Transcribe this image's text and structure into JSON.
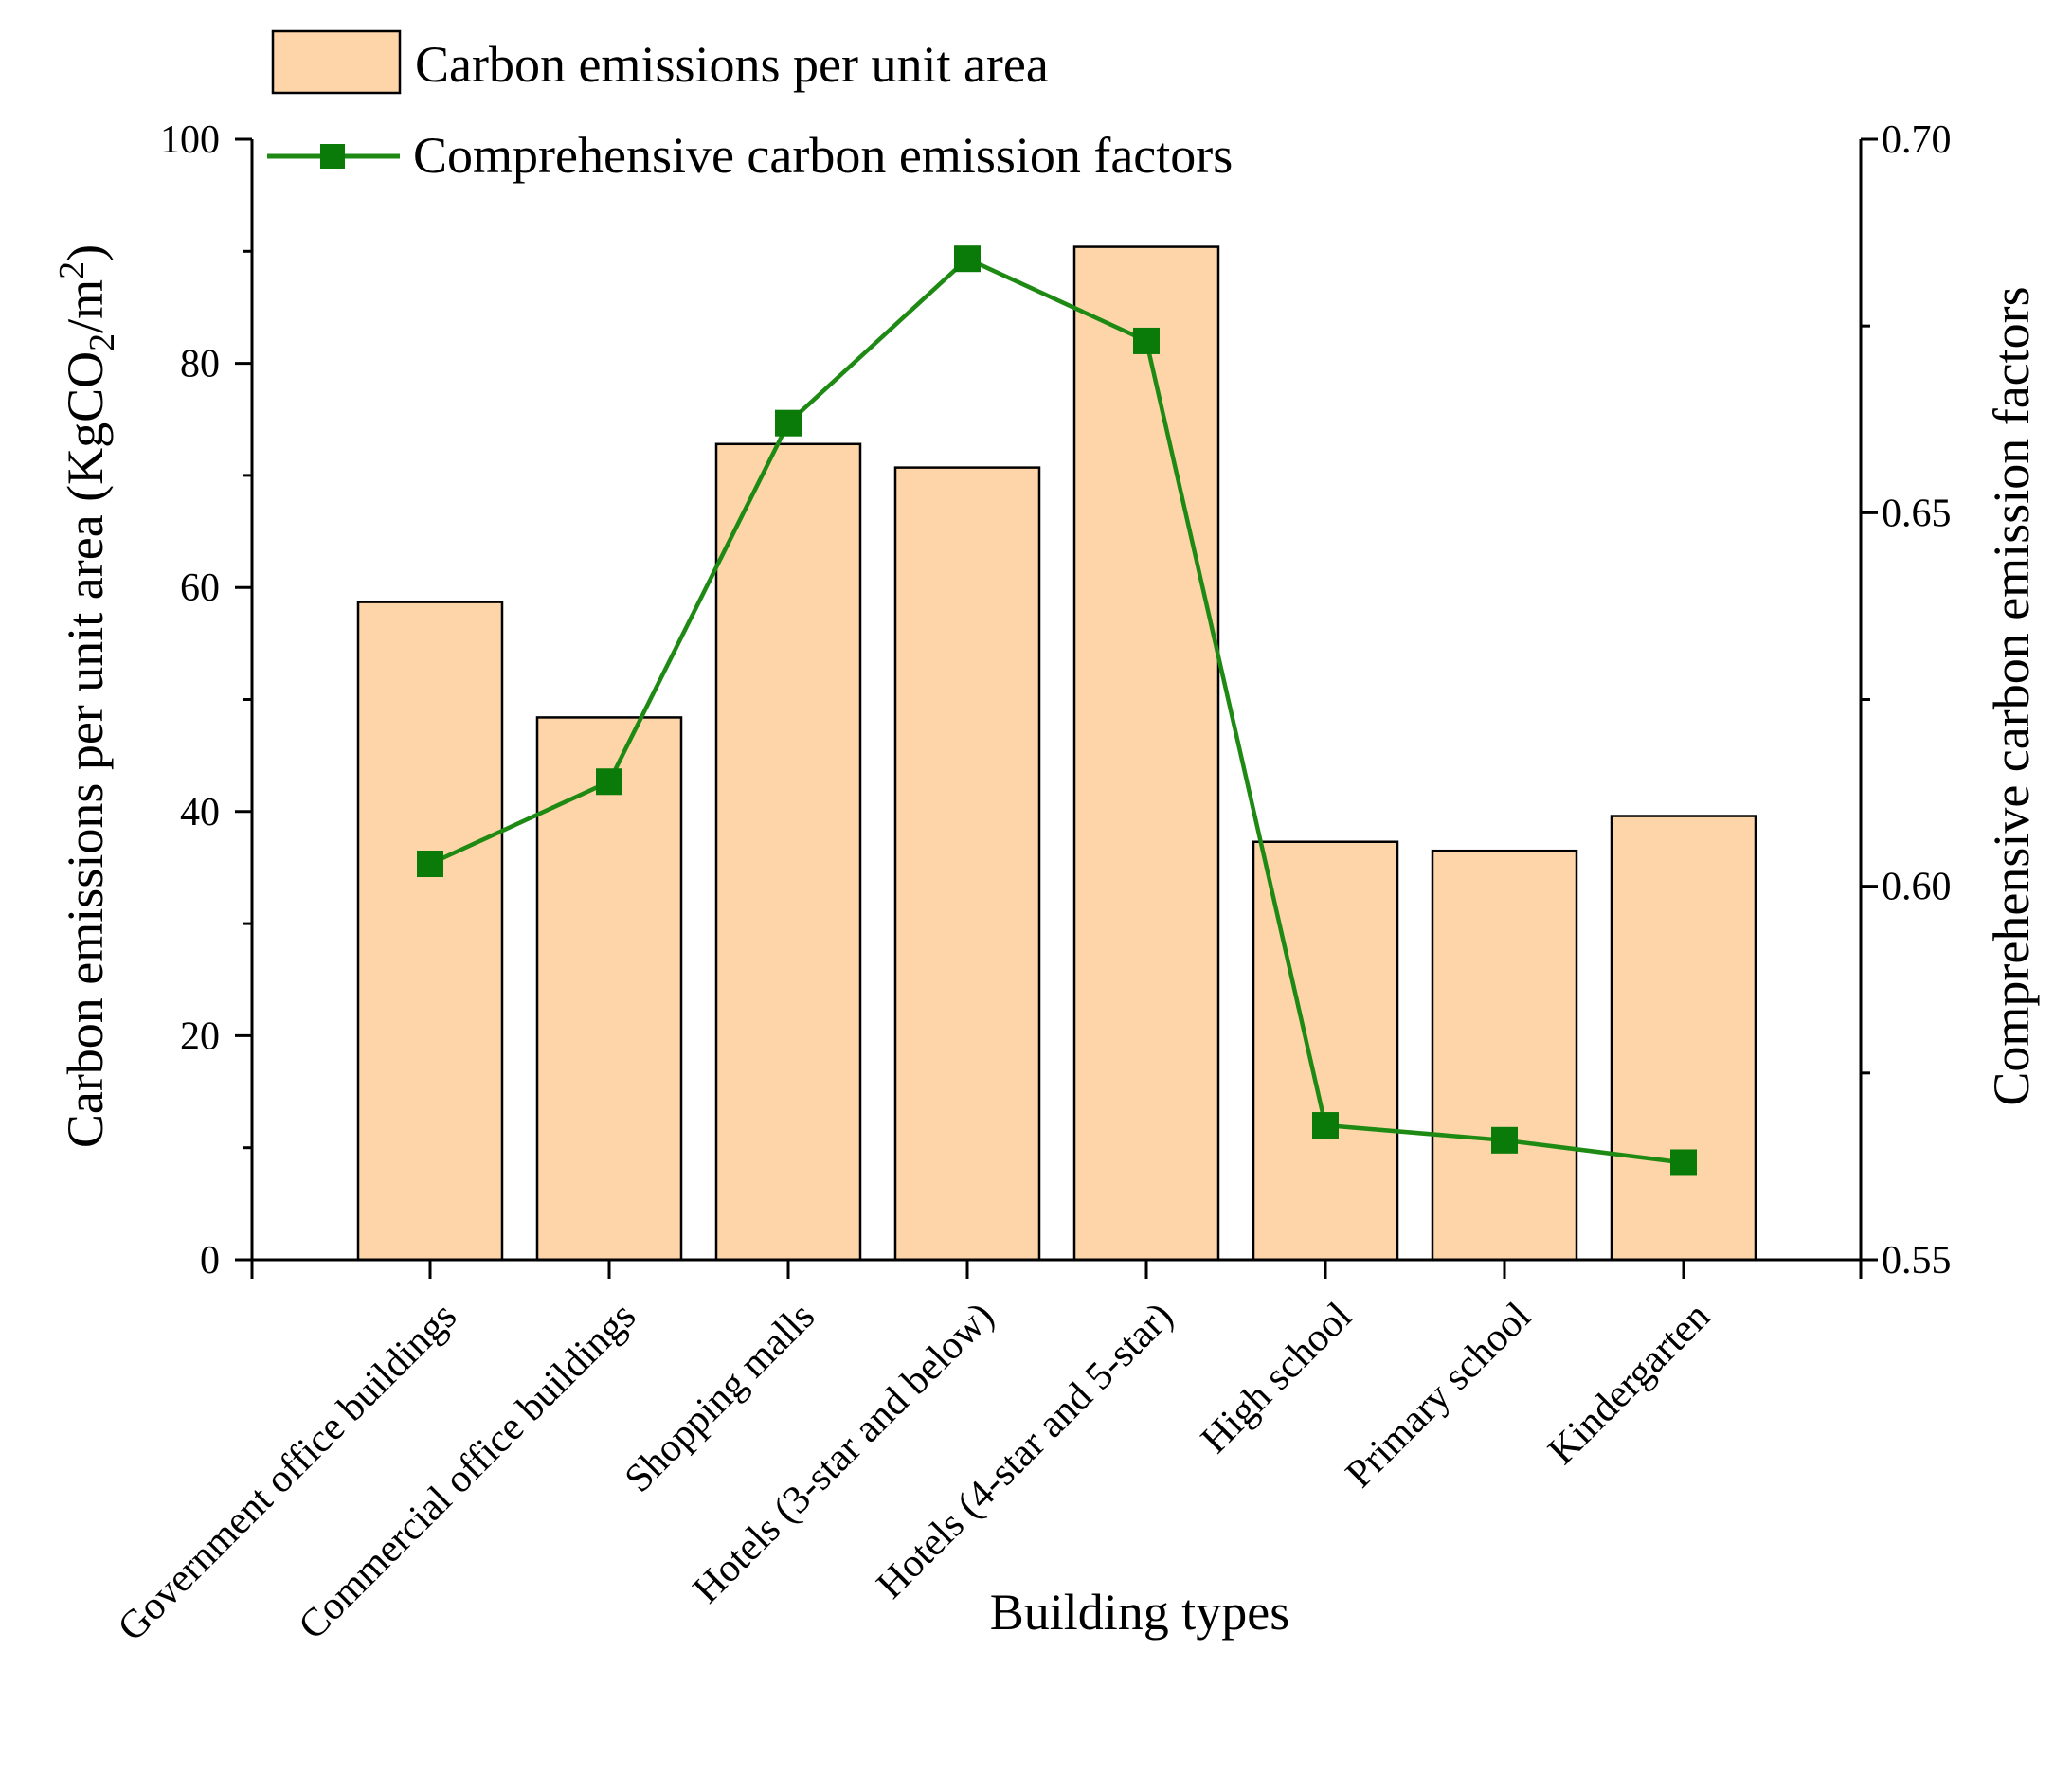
{
  "chart_data": {
    "type": "bar+line",
    "title": "",
    "xlabel": "Building types",
    "categories": [
      "Government office buildings",
      "Commercial office buildings",
      "Shopping malls",
      "Hotels (3-star and below)",
      "Hotels (4-star and 5-star)",
      "High school",
      "Primary school",
      "Kindergarten"
    ],
    "series": [
      {
        "name": "Carbon emissions per unit area",
        "type": "bar",
        "axis": "left",
        "values": [
          58.7,
          48.4,
          72.8,
          70.7,
          90.4,
          37.3,
          36.5,
          39.6
        ]
      },
      {
        "name": "Comprehensive carbon emission factors",
        "type": "line",
        "axis": "right",
        "values": [
          0.603,
          0.614,
          0.662,
          0.684,
          0.673,
          0.568,
          0.566,
          0.563
        ]
      }
    ],
    "y_left": {
      "label_main": "Carbon emissions per unit area (KgCO",
      "label_sub": "2",
      "label_mid": "/m",
      "label_sup": "2",
      "label_end": ")",
      "range": [
        0,
        100
      ],
      "ticks": [
        "0",
        "20",
        "40",
        "60",
        "80",
        "100"
      ]
    },
    "y_right": {
      "label": "Comprehensive carbon emission factors",
      "range": [
        0.55,
        0.7
      ],
      "ticks": [
        "0.55",
        "0.60",
        "0.65",
        "0.70"
      ]
    },
    "legend_position": "top-left",
    "grid": false
  },
  "colors": {
    "bar_fill": "#FDD5A8",
    "bar_stroke": "#000000",
    "line": "#1E8A14",
    "marker": "#0A7A08",
    "axis": "#000000"
  }
}
